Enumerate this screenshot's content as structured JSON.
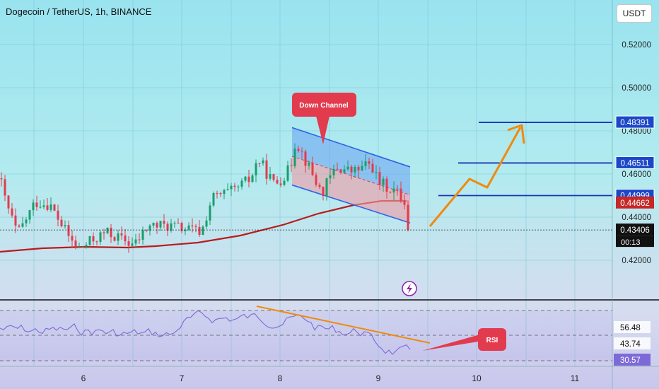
{
  "header": {
    "title": "Dogecoin / TetherUS, 1h, BINANCE",
    "currency": "USDT"
  },
  "colors": {
    "up": "#1a9e6c",
    "down": "#e33b4e",
    "ma": "#b71c1c",
    "level": "#1836b4",
    "arrow": "#f08a0c",
    "channel_line": "#2e62e8",
    "callout": "#e33b4e",
    "rsi": "#7e6ad6"
  },
  "chart_data": [
    {
      "type": "candlestick",
      "title": "Dogecoin / TetherUS, 1h, BINANCE",
      "x_ticks": [
        "6",
        "7",
        "8",
        "9",
        "10",
        "11"
      ],
      "y_ticks": [
        "0.52000",
        "0.50000",
        "0.48000",
        "0.46000",
        "0.44000",
        "0.42000"
      ],
      "ylim": [
        0.407,
        0.535
      ],
      "price_labels": [
        {
          "name": "level",
          "value": "0.48391"
        },
        {
          "name": "level",
          "value": "0.46511"
        },
        {
          "name": "level",
          "value": "0.44999"
        },
        {
          "name": "ma",
          "value": "0.44662"
        },
        {
          "name": "last",
          "value": "0.43406"
        }
      ],
      "countdown": "00:13",
      "annotations": [
        "Down Channel"
      ],
      "horizontal_levels": [
        0.48391,
        0.46511,
        0.44999
      ],
      "channel": {
        "upper_start": 0.4815,
        "upper_end": 0.4633,
        "lower_start": 0.4549,
        "lower_end": 0.4373
      }
    },
    {
      "type": "line",
      "title": "RSI",
      "y_values_shown": [
        "56.48",
        "43.74",
        "30.57"
      ],
      "annotation": "RSI"
    }
  ]
}
